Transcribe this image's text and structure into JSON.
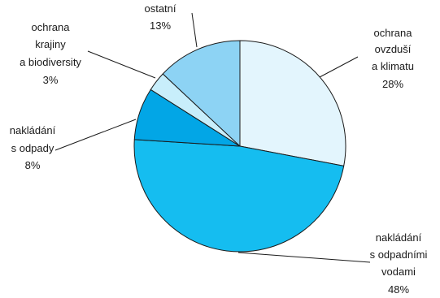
{
  "chart_data": {
    "type": "pie",
    "title": "",
    "slices": [
      {
        "label_lines": [
          "ochrana",
          "ovzduší",
          "a klimatu"
        ],
        "value_label": "28%",
        "value": 28,
        "color": "#e3f5fd"
      },
      {
        "label_lines": [
          "nakládání",
          "s odpadními",
          "vodami"
        ],
        "value_label": "48%",
        "value": 48,
        "color": "#15bdf0"
      },
      {
        "label_lines": [
          "nakládání",
          "s odpady"
        ],
        "value_label": "8%",
        "value": 8,
        "color": "#02a6e6"
      },
      {
        "label_lines": [
          "ochrana",
          "krajiny",
          "a biodiversity"
        ],
        "value_label": "3%",
        "value": 3,
        "color": "#c8eefb"
      },
      {
        "label_lines": [
          "ostatní"
        ],
        "value_label": "13%",
        "value": 13,
        "color": "#8dd3f4"
      }
    ]
  }
}
